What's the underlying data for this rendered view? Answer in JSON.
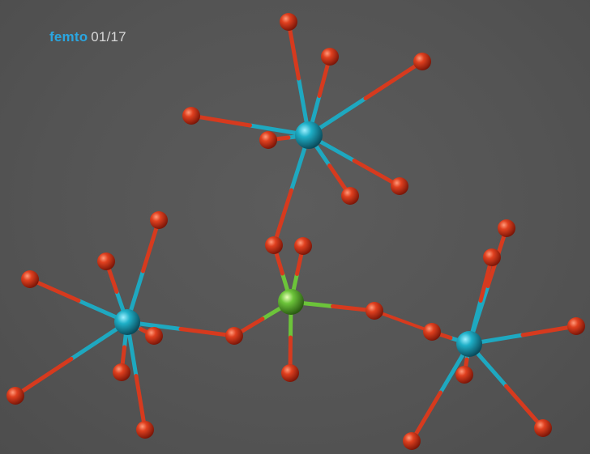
{
  "masthead": {
    "brand": "femto",
    "issue": "01/17"
  },
  "colors": {
    "background": "#555555",
    "brand": "#2aa6e0",
    "issue_text": "#d8d8d8",
    "oxygen_atom": "#d63a1e",
    "metal_atom": "#1ea8c0",
    "center_atom": "#6cc43a"
  }
}
